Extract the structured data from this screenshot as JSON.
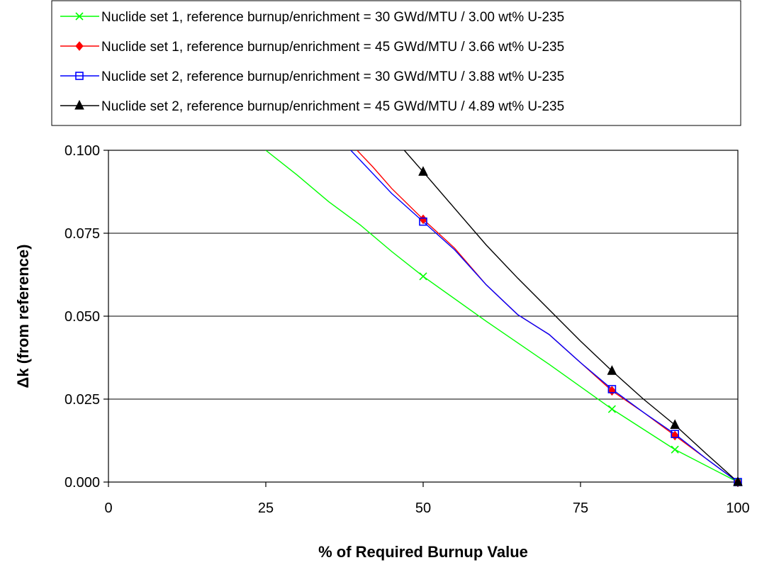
{
  "chart_data": {
    "type": "line",
    "xlabel": "% of Required Burnup Value",
    "ylabel": "Δk (from reference)",
    "xlim": [
      0,
      100
    ],
    "ylim": [
      0,
      0.1
    ],
    "x_ticks": [
      "0",
      "25",
      "50",
      "75",
      "100"
    ],
    "y_ticks": [
      "0.000",
      "0.025",
      "0.050",
      "0.075",
      "0.100"
    ],
    "grid": "horizontal",
    "legend_position": "top",
    "series": [
      {
        "name": "Nuclide set 1, reference burnup/enrichment = 30 GWd/MTU / 3.00 wt% U-235",
        "color": "#00ff00",
        "marker": "x",
        "marker_x": [
          50,
          80,
          90,
          100
        ],
        "line": [
          [
            25,
            0.1
          ],
          [
            30,
            0.0925
          ],
          [
            35,
            0.0845
          ],
          [
            40,
            0.0775
          ],
          [
            45,
            0.0695
          ],
          [
            50,
            0.062
          ],
          [
            60,
            0.0485
          ],
          [
            70,
            0.0355
          ],
          [
            80,
            0.022
          ],
          [
            90,
            0.0098
          ],
          [
            100,
            0.0
          ]
        ]
      },
      {
        "name": "Nuclide set 1, reference burnup/enrichment = 45 GWd/MTU / 3.66 wt% U-235",
        "color": "#ff0000",
        "marker": "diamond",
        "marker_x": [
          50,
          80,
          90,
          100
        ],
        "line": [
          [
            39.5,
            0.1
          ],
          [
            42,
            0.095
          ],
          [
            45,
            0.0885
          ],
          [
            50,
            0.0792
          ],
          [
            55,
            0.0705
          ],
          [
            60,
            0.0595
          ],
          [
            65,
            0.0505
          ],
          [
            70,
            0.0445
          ],
          [
            75,
            0.036
          ],
          [
            80,
            0.0275
          ],
          [
            85,
            0.021
          ],
          [
            90,
            0.014
          ],
          [
            95,
            0.007
          ],
          [
            100,
            0.0
          ]
        ]
      },
      {
        "name": "Nuclide set 2, reference burnup/enrichment = 30 GWd/MTU / 3.88 wt% U-235",
        "color": "#0000ff",
        "marker": "open-square",
        "marker_x": [
          50,
          80,
          90,
          100
        ],
        "line": [
          [
            38.5,
            0.1
          ],
          [
            41,
            0.095
          ],
          [
            45,
            0.087
          ],
          [
            50,
            0.0785
          ],
          [
            55,
            0.07
          ],
          [
            60,
            0.0595
          ],
          [
            65,
            0.0505
          ],
          [
            70,
            0.0445
          ],
          [
            75,
            0.036
          ],
          [
            80,
            0.028
          ],
          [
            85,
            0.021
          ],
          [
            90,
            0.0145
          ],
          [
            95,
            0.007
          ],
          [
            100,
            0.0
          ]
        ]
      },
      {
        "name": "Nuclide set 2, reference burnup/enrichment = 45 GWd/MTU / 4.89 wt% U-235",
        "color": "#000000",
        "marker": "triangle",
        "marker_x": [
          50,
          80,
          90,
          100
        ],
        "line": [
          [
            47,
            0.1
          ],
          [
            50,
            0.0935
          ],
          [
            55,
            0.0825
          ],
          [
            60,
            0.0715
          ],
          [
            65,
            0.0615
          ],
          [
            70,
            0.052
          ],
          [
            75,
            0.0425
          ],
          [
            80,
            0.0335
          ],
          [
            85,
            0.025
          ],
          [
            90,
            0.0172
          ],
          [
            95,
            0.0085
          ],
          [
            100,
            0.0
          ]
        ]
      }
    ]
  }
}
